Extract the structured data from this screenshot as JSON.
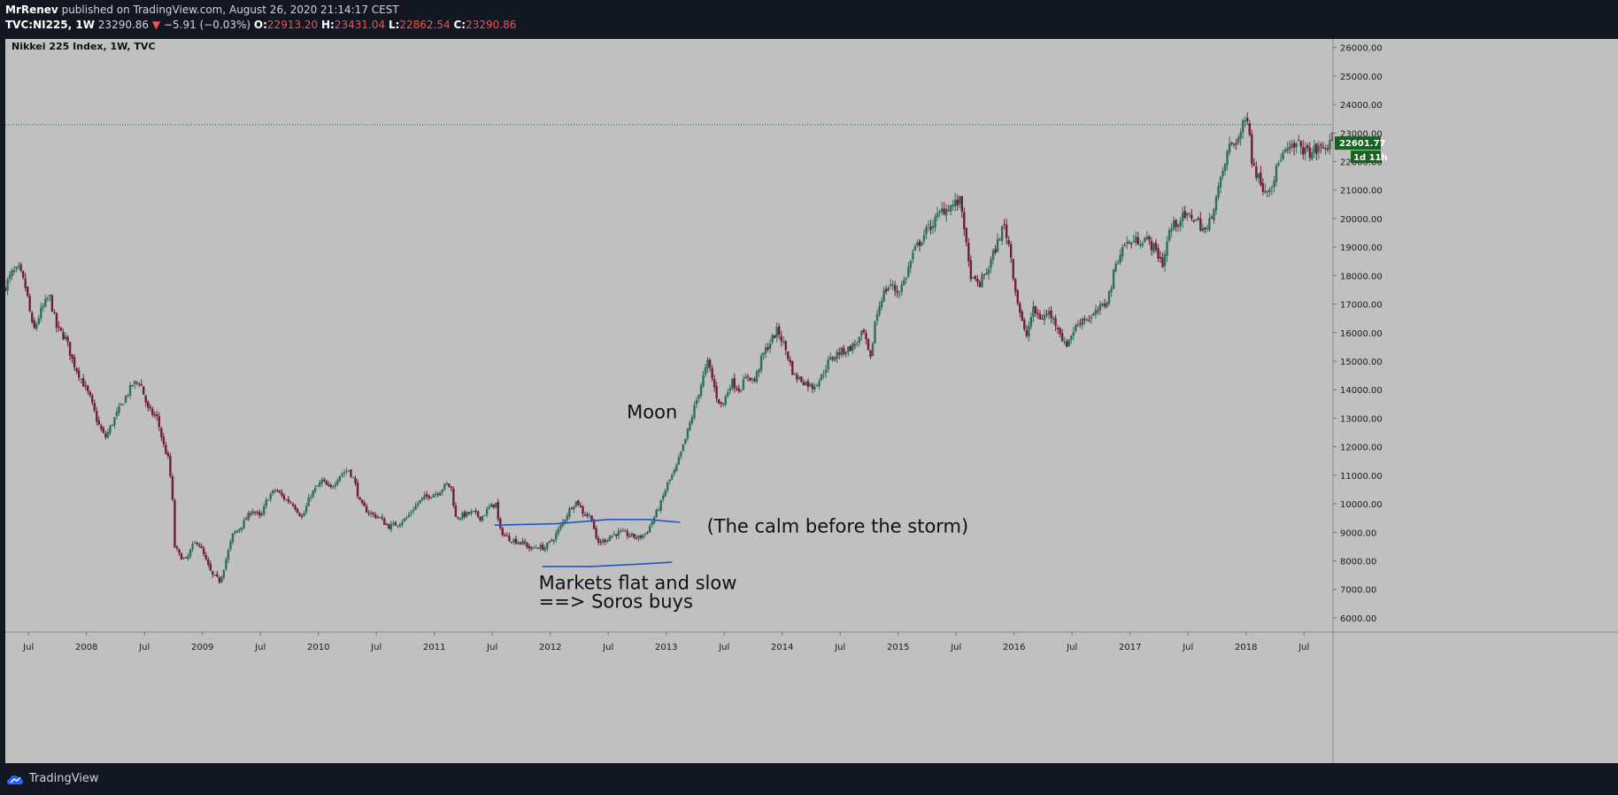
{
  "header": {
    "author": "MrRenev",
    "published": "published on TradingView.com, August 26, 2020 21:14:17 CEST",
    "symbol": "TVC:NI225, 1W",
    "last": "23290.86",
    "change_arrow": "▼",
    "change": "−5.91 (−0.03%)",
    "o_label": "O:",
    "o_value": "22913.20",
    "h_label": "H:",
    "h_value": "23431.04",
    "l_label": "L:",
    "l_value": "22862.54",
    "c_label": "C:",
    "c_value": "23290.86"
  },
  "footer": {
    "brand": "TradingView"
  },
  "chart_data": {
    "type": "candlestick",
    "title": "Nikkei 225 Index, 1W, TVC",
    "ylim": [
      5500,
      26300
    ],
    "y_ticks": [
      "26000.00",
      "25000.00",
      "24000.00",
      "23000.00",
      "22000.00",
      "21000.00",
      "20000.00",
      "19000.00",
      "18000.00",
      "17000.00",
      "16000.00",
      "15000.00",
      "14000.00",
      "13000.00",
      "12000.00",
      "11000.00",
      "10000.00",
      "9000.00",
      "8000.00",
      "7000.00",
      "6000.00"
    ],
    "x_ticks": [
      "Jul",
      "2008",
      "Jul",
      "2009",
      "Jul",
      "2010",
      "Jul",
      "2011",
      "Jul",
      "2012",
      "Jul",
      "2013",
      "Jul",
      "2014",
      "Jul",
      "2015",
      "Jul",
      "2016",
      "Jul",
      "2017",
      "Jul",
      "2018",
      "Jul"
    ],
    "x_range": [
      2007.3,
      2018.75
    ],
    "price_line": 23290.86,
    "price_badge": "22601.77",
    "price_badge_value": 22601.77,
    "countdown_badge": "1d 11h",
    "colors": {
      "background": "#c0c0c0",
      "up": "#2f6d5f",
      "down": "#701d35",
      "annotation_line": "#2156c8",
      "badge": "#15631f",
      "axis_text": "#1a1a1a"
    },
    "path_points": [
      [
        2007.3,
        17500
      ],
      [
        2007.38,
        18100
      ],
      [
        2007.44,
        18200
      ],
      [
        2007.5,
        17500
      ],
      [
        2007.56,
        16000
      ],
      [
        2007.62,
        16700
      ],
      [
        2007.7,
        17300
      ],
      [
        2007.76,
        16200
      ],
      [
        2007.84,
        15800
      ],
      [
        2007.9,
        15000
      ],
      [
        2007.96,
        14500
      ],
      [
        2008.05,
        13700
      ],
      [
        2008.12,
        12800
      ],
      [
        2008.18,
        12300
      ],
      [
        2008.25,
        12900
      ],
      [
        2008.35,
        13700
      ],
      [
        2008.42,
        14200
      ],
      [
        2008.48,
        14300
      ],
      [
        2008.55,
        13300
      ],
      [
        2008.63,
        13000
      ],
      [
        2008.68,
        12100
      ],
      [
        2008.73,
        11500
      ],
      [
        2008.76,
        10200
      ],
      [
        2008.78,
        8500
      ],
      [
        2008.82,
        8200
      ],
      [
        2008.88,
        8000
      ],
      [
        2008.93,
        8500
      ],
      [
        2008.98,
        8700
      ],
      [
        2009.05,
        8000
      ],
      [
        2009.1,
        7500
      ],
      [
        2009.17,
        7300
      ],
      [
        2009.22,
        8000
      ],
      [
        2009.28,
        8900
      ],
      [
        2009.35,
        9200
      ],
      [
        2009.45,
        9800
      ],
      [
        2009.52,
        9500
      ],
      [
        2009.58,
        10200
      ],
      [
        2009.65,
        10500
      ],
      [
        2009.72,
        10200
      ],
      [
        2009.8,
        10000
      ],
      [
        2009.88,
        9500
      ],
      [
        2009.95,
        10300
      ],
      [
        2010.05,
        10800
      ],
      [
        2010.12,
        10500
      ],
      [
        2010.2,
        11000
      ],
      [
        2010.28,
        11200
      ],
      [
        2010.33,
        10800
      ],
      [
        2010.38,
        10000
      ],
      [
        2010.45,
        9700
      ],
      [
        2010.55,
        9500
      ],
      [
        2010.62,
        9200
      ],
      [
        2010.7,
        9300
      ],
      [
        2010.78,
        9500
      ],
      [
        2010.85,
        9900
      ],
      [
        2010.92,
        10200
      ],
      [
        2010.98,
        10300
      ],
      [
        2011.05,
        10400
      ],
      [
        2011.13,
        10700
      ],
      [
        2011.17,
        10500
      ],
      [
        2011.2,
        9500
      ],
      [
        2011.27,
        9600
      ],
      [
        2011.35,
        9700
      ],
      [
        2011.42,
        9500
      ],
      [
        2011.5,
        9900
      ],
      [
        2011.55,
        10000
      ],
      [
        2011.58,
        9100
      ],
      [
        2011.65,
        8800
      ],
      [
        2011.72,
        8700
      ],
      [
        2011.8,
        8600
      ],
      [
        2011.85,
        8400
      ],
      [
        2011.9,
        8500
      ],
      [
        2011.97,
        8450
      ],
      [
        2012.05,
        8800
      ],
      [
        2012.12,
        9300
      ],
      [
        2012.2,
        9900
      ],
      [
        2012.25,
        10100
      ],
      [
        2012.3,
        9700
      ],
      [
        2012.38,
        9500
      ],
      [
        2012.42,
        8600
      ],
      [
        2012.48,
        8700
      ],
      [
        2012.55,
        8900
      ],
      [
        2012.62,
        9000
      ],
      [
        2012.7,
        8900
      ],
      [
        2012.78,
        8800
      ],
      [
        2012.85,
        9000
      ],
      [
        2012.9,
        9400
      ],
      [
        2012.97,
        10000
      ],
      [
        2013.03,
        10700
      ],
      [
        2013.1,
        11200
      ],
      [
        2013.18,
        12200
      ],
      [
        2013.25,
        13200
      ],
      [
        2013.32,
        14200
      ],
      [
        2013.38,
        15000
      ],
      [
        2013.45,
        13800
      ],
      [
        2013.5,
        13400
      ],
      [
        2013.58,
        14300
      ],
      [
        2013.65,
        14000
      ],
      [
        2013.72,
        14500
      ],
      [
        2013.78,
        14300
      ],
      [
        2013.85,
        15200
      ],
      [
        2013.92,
        15700
      ],
      [
        2013.98,
        16100
      ],
      [
        2014.05,
        15400
      ],
      [
        2014.12,
        14500
      ],
      [
        2014.2,
        14300
      ],
      [
        2014.28,
        14100
      ],
      [
        2014.35,
        14400
      ],
      [
        2014.42,
        15000
      ],
      [
        2014.5,
        15300
      ],
      [
        2014.58,
        15400
      ],
      [
        2014.65,
        15600
      ],
      [
        2014.72,
        16000
      ],
      [
        2014.78,
        15000
      ],
      [
        2014.82,
        16400
      ],
      [
        2014.88,
        17300
      ],
      [
        2014.95,
        17700
      ],
      [
        2015.02,
        17400
      ],
      [
        2015.08,
        17900
      ],
      [
        2015.15,
        18800
      ],
      [
        2015.25,
        19500
      ],
      [
        2015.33,
        19900
      ],
      [
        2015.4,
        20300
      ],
      [
        2015.45,
        20400
      ],
      [
        2015.5,
        20500
      ],
      [
        2015.55,
        20600
      ],
      [
        2015.58,
        20100
      ],
      [
        2015.62,
        18500
      ],
      [
        2015.66,
        17800
      ],
      [
        2015.72,
        17700
      ],
      [
        2015.8,
        18300
      ],
      [
        2015.88,
        19200
      ],
      [
        2015.93,
        19800
      ],
      [
        2015.98,
        19000
      ],
      [
        2016.03,
        17500
      ],
      [
        2016.08,
        16500
      ],
      [
        2016.12,
        15800
      ],
      [
        2016.18,
        16800
      ],
      [
        2016.25,
        16500
      ],
      [
        2016.32,
        16700
      ],
      [
        2016.4,
        16200
      ],
      [
        2016.46,
        15500
      ],
      [
        2016.52,
        16000
      ],
      [
        2016.6,
        16500
      ],
      [
        2016.68,
        16500
      ],
      [
        2016.75,
        16800
      ],
      [
        2016.8,
        17000
      ],
      [
        2016.85,
        17500
      ],
      [
        2016.9,
        18500
      ],
      [
        2016.97,
        19100
      ],
      [
        2017.05,
        19200
      ],
      [
        2017.15,
        19300
      ],
      [
        2017.22,
        19000
      ],
      [
        2017.28,
        18600
      ],
      [
        2017.3,
        18400
      ],
      [
        2017.36,
        19600
      ],
      [
        2017.45,
        20000
      ],
      [
        2017.55,
        20100
      ],
      [
        2017.62,
        19800
      ],
      [
        2017.68,
        19500
      ],
      [
        2017.73,
        20300
      ],
      [
        2017.8,
        21300
      ],
      [
        2017.87,
        22500
      ],
      [
        2017.95,
        22800
      ],
      [
        2018.0,
        23300
      ],
      [
        2018.04,
        23700
      ],
      [
        2018.07,
        22000
      ],
      [
        2018.12,
        21500
      ],
      [
        2018.18,
        21000
      ],
      [
        2018.25,
        21300
      ],
      [
        2018.32,
        22200
      ],
      [
        2018.4,
        22400
      ],
      [
        2018.47,
        22600
      ],
      [
        2018.55,
        22300
      ],
      [
        2018.62,
        22400
      ],
      [
        2018.7,
        22500
      ],
      [
        2018.75,
        22600
      ]
    ],
    "annotations": [
      {
        "text": "Moon",
        "x": 2012.66,
        "y": 13000
      },
      {
        "text": "(The calm before the storm)",
        "x": 2013.35,
        "y": 9000
      },
      {
        "text": "Markets flat and slow",
        "x": 2011.9,
        "y": 7000
      },
      {
        "text": "==> Soros buys",
        "x": 2011.9,
        "y": 6350
      }
    ],
    "annotation_curves": [
      [
        [
          2011.52,
          9250
        ],
        [
          2012.05,
          9300
        ],
        [
          2012.5,
          9450
        ],
        [
          2012.85,
          9450
        ],
        [
          2013.12,
          9350
        ]
      ],
      [
        [
          2011.93,
          7800
        ],
        [
          2012.35,
          7800
        ],
        [
          2012.75,
          7880
        ],
        [
          2013.05,
          7950
        ]
      ]
    ]
  }
}
